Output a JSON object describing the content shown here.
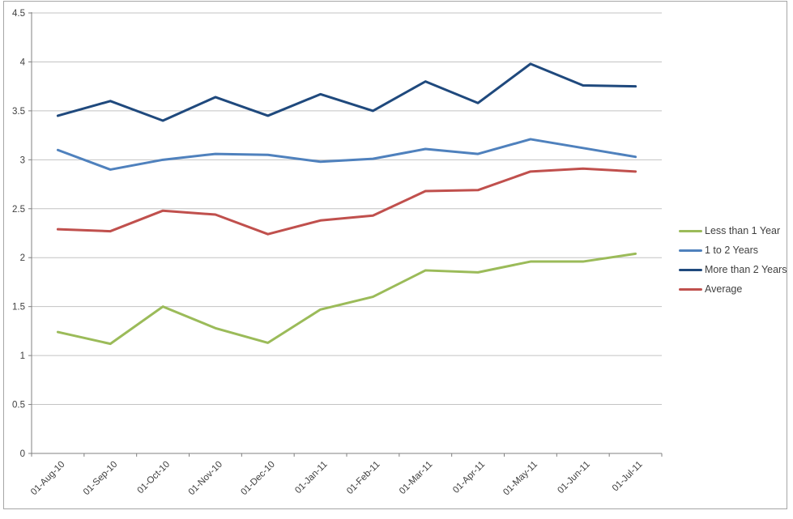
{
  "chart_data": {
    "type": "line",
    "title": "",
    "xlabel": "",
    "ylabel": "",
    "categories": [
      "01-Aug-10",
      "01-Sep-10",
      "01-Oct-10",
      "01-Nov-10",
      "01-Dec-10",
      "01-Jan-11",
      "01-Feb-11",
      "01-Mar-11",
      "01-Apr-11",
      "01-May-11",
      "01-Jun-11",
      "01-Jul-11"
    ],
    "series": [
      {
        "name": "Less than 1 Year",
        "color": "#9bbb59",
        "values": [
          1.24,
          1.12,
          1.5,
          1.28,
          1.13,
          1.47,
          1.6,
          1.87,
          1.85,
          1.96,
          1.96,
          2.04
        ]
      },
      {
        "name": "1 to 2 Years",
        "color": "#4f81bd",
        "values": [
          3.1,
          2.9,
          3.0,
          3.06,
          3.05,
          2.98,
          3.01,
          3.11,
          3.06,
          3.21,
          3.12,
          3.03
        ]
      },
      {
        "name": "More than 2 Years",
        "color": "#1f497d",
        "values": [
          3.45,
          3.6,
          3.4,
          3.64,
          3.45,
          3.67,
          3.5,
          3.8,
          3.58,
          3.98,
          3.76,
          3.75
        ]
      },
      {
        "name": "Average",
        "color": "#c0504d",
        "values": [
          2.29,
          2.27,
          2.48,
          2.44,
          2.24,
          2.38,
          2.43,
          2.68,
          2.69,
          2.88,
          2.91,
          2.88
        ]
      }
    ],
    "ylim": [
      0,
      4.5
    ],
    "ytick_step": 0.5,
    "ytick_labels": [
      "0",
      "0.5",
      "1",
      "1.5",
      "2",
      "2.5",
      "3",
      "3.5",
      "4",
      "4.5"
    ],
    "grid": true,
    "legend_position": "right",
    "colors": {
      "gridline": "#c3c3c3",
      "axis": "#808080",
      "tick_label": "#3f3f3f",
      "frame_border": "#a6a6a6",
      "background": "#ffffff"
    }
  }
}
